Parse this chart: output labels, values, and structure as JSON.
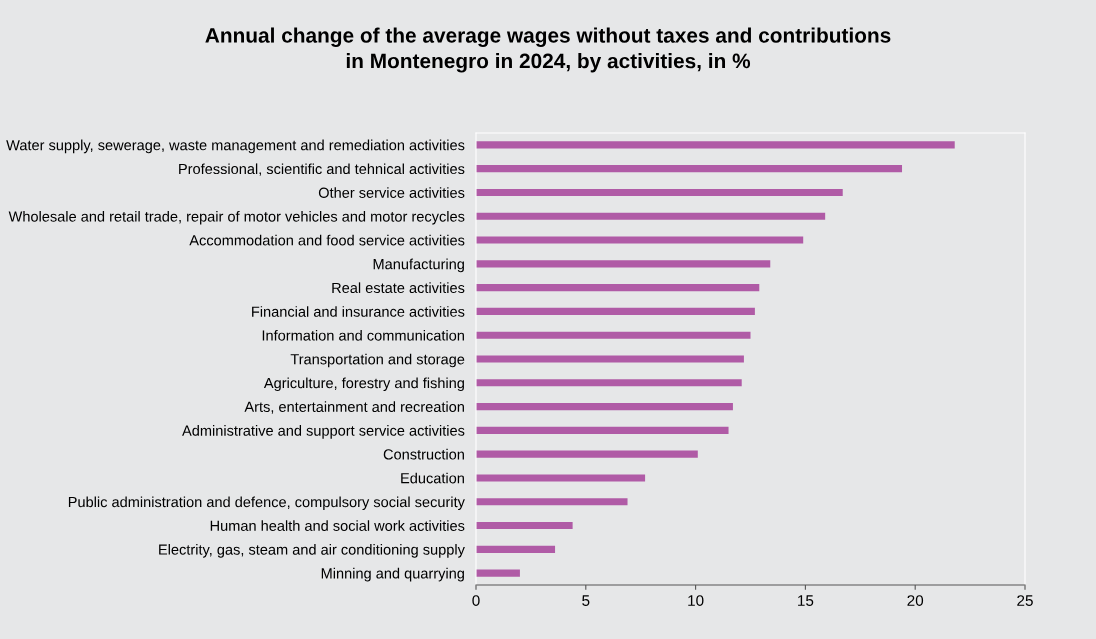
{
  "chart_data": {
    "type": "bar",
    "orientation": "horizontal",
    "title": "Annual change of the average wages without taxes and contributions\nin Montenegro in 2024, by activities, in %",
    "categories": [
      "Water supply, sewerage, waste management and remediation activities",
      "Professional, scientific and tehnical activities",
      "Other service activities",
      "Wholesale and retail trade, repair of motor vehicles and motor recycles",
      "Accommodation and food service activities",
      "Manufacturing",
      "Real estate activities",
      "Financial and insurance activities",
      "Information and communication",
      "Transportation and storage",
      "Agriculture, forestry and fishing",
      "Arts, entertainment and recreation",
      "Administrative and support service activities",
      "Construction",
      "Education",
      "Public administration and defence, compulsory social security",
      "Human health and social work activities",
      "Electrity, gas, steam and air conditioning supply",
      "Minning and quarrying"
    ],
    "values": [
      21.8,
      19.4,
      16.7,
      15.9,
      14.9,
      13.4,
      12.9,
      12.7,
      12.5,
      12.2,
      12.1,
      11.7,
      11.5,
      10.1,
      7.7,
      6.9,
      4.4,
      3.6,
      2.0
    ],
    "color": "#b05ba6",
    "xlim": [
      0,
      25
    ],
    "xticks": [
      0,
      5,
      10,
      15,
      20,
      25
    ],
    "grid": false,
    "legend": false
  }
}
